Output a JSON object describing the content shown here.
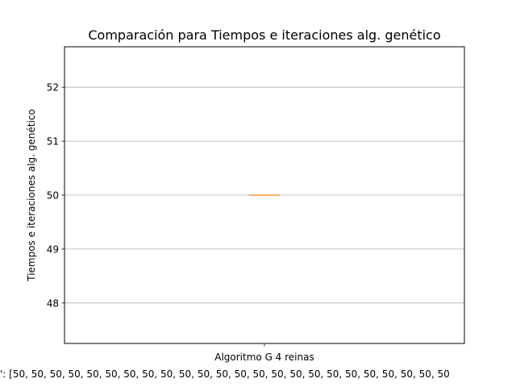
{
  "chart_data": {
    "type": "box",
    "title": "Comparación para Tiempos e iteraciones alg. genético",
    "ylabel": "Tiempos e iteraciones alg. genético",
    "categories": [
      "Algoritmo G 4 reinas"
    ],
    "x_annotation": "': [50, 50, 50, 50, 50, 50, 50, 50, 50, 50, 50, 50, 50, 50, 50, 50, 50, 50, 50, 50, 50, 50, 50, 50",
    "series": [
      {
        "values": [
          50,
          50,
          50,
          50,
          50,
          50,
          50,
          50,
          50,
          50,
          50,
          50,
          50,
          50,
          50,
          50,
          50,
          50,
          50,
          50,
          50,
          50,
          50,
          50
        ]
      }
    ],
    "box": {
      "min": 50,
      "q1": 50,
      "median": 50,
      "q3": 50,
      "max": 50
    },
    "ylim": [
      47.25,
      52.75
    ],
    "yticks": [
      48,
      49,
      50,
      51,
      52
    ],
    "grid": "y",
    "colors": {
      "box": "#1f77b4",
      "median": "#ff7f0e",
      "grid": "#b0b0b0"
    }
  }
}
